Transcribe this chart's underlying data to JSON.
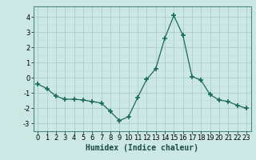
{
  "x": [
    0,
    1,
    2,
    3,
    4,
    5,
    6,
    7,
    8,
    9,
    10,
    11,
    12,
    13,
    14,
    15,
    16,
    17,
    18,
    19,
    20,
    21,
    22,
    23
  ],
  "y": [
    -0.4,
    -0.7,
    -1.2,
    -1.4,
    -1.4,
    -1.45,
    -1.55,
    -1.65,
    -2.2,
    -2.8,
    -2.55,
    -1.3,
    -0.1,
    0.6,
    2.6,
    4.1,
    2.8,
    0.1,
    -0.15,
    -1.1,
    -1.45,
    -1.55,
    -1.8,
    -2.0
  ],
  "line_color": "#1a6b5a",
  "marker": "+",
  "marker_size": 4,
  "marker_lw": 1.2,
  "bg_color": "#cce8e4",
  "grid_color_major": "#aaccca",
  "grid_color_minor": "#c0dbd8",
  "xlabel": "Humidex (Indice chaleur)",
  "ylim": [
    -3.5,
    4.7
  ],
  "xlim": [
    -0.5,
    23.5
  ],
  "yticks": [
    -3,
    -2,
    -1,
    0,
    1,
    2,
    3,
    4
  ],
  "xticks": [
    0,
    1,
    2,
    3,
    4,
    5,
    6,
    7,
    8,
    9,
    10,
    11,
    12,
    13,
    14,
    15,
    16,
    17,
    18,
    19,
    20,
    21,
    22,
    23
  ],
  "label_fontsize": 7,
  "tick_fontsize": 6
}
